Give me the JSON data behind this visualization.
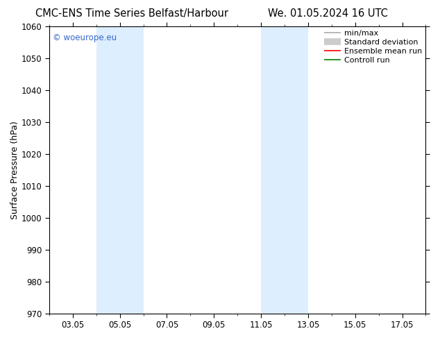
{
  "title_left": "CMC-ENS Time Series Belfast/Harbour",
  "title_right": "We. 01.05.2024 16 UTC",
  "ylabel": "Surface Pressure (hPa)",
  "ylim": [
    970,
    1060
  ],
  "yticks": [
    970,
    980,
    990,
    1000,
    1010,
    1020,
    1030,
    1040,
    1050,
    1060
  ],
  "xlim": [
    2.0,
    18.0
  ],
  "xtick_labels": [
    "03.05",
    "05.05",
    "07.05",
    "09.05",
    "11.05",
    "13.05",
    "15.05",
    "17.05"
  ],
  "xtick_positions": [
    3,
    5,
    7,
    9,
    11,
    13,
    15,
    17
  ],
  "shaded_bands": [
    {
      "x_start": 4.0,
      "x_end": 5.0
    },
    {
      "x_start": 5.0,
      "x_end": 6.0
    },
    {
      "x_start": 11.0,
      "x_end": 12.0
    },
    {
      "x_start": 12.0,
      "x_end": 13.0
    }
  ],
  "shaded_color": "#ddeeff",
  "watermark_text": "© woeurope.eu",
  "watermark_color": "#3366cc",
  "legend_entries": [
    {
      "label": "min/max",
      "color": "#aaaaaa",
      "lw": 1.2,
      "style": "line"
    },
    {
      "label": "Standard deviation",
      "color": "#cccccc",
      "lw": 7,
      "style": "line"
    },
    {
      "label": "Ensemble mean run",
      "color": "red",
      "lw": 1.2,
      "style": "line"
    },
    {
      "label": "Controll run",
      "color": "green",
      "lw": 1.2,
      "style": "line"
    }
  ],
  "bg_color": "#ffffff",
  "spine_color": "#000000",
  "title_fontsize": 10.5,
  "label_fontsize": 9,
  "tick_fontsize": 8.5,
  "legend_fontsize": 8
}
